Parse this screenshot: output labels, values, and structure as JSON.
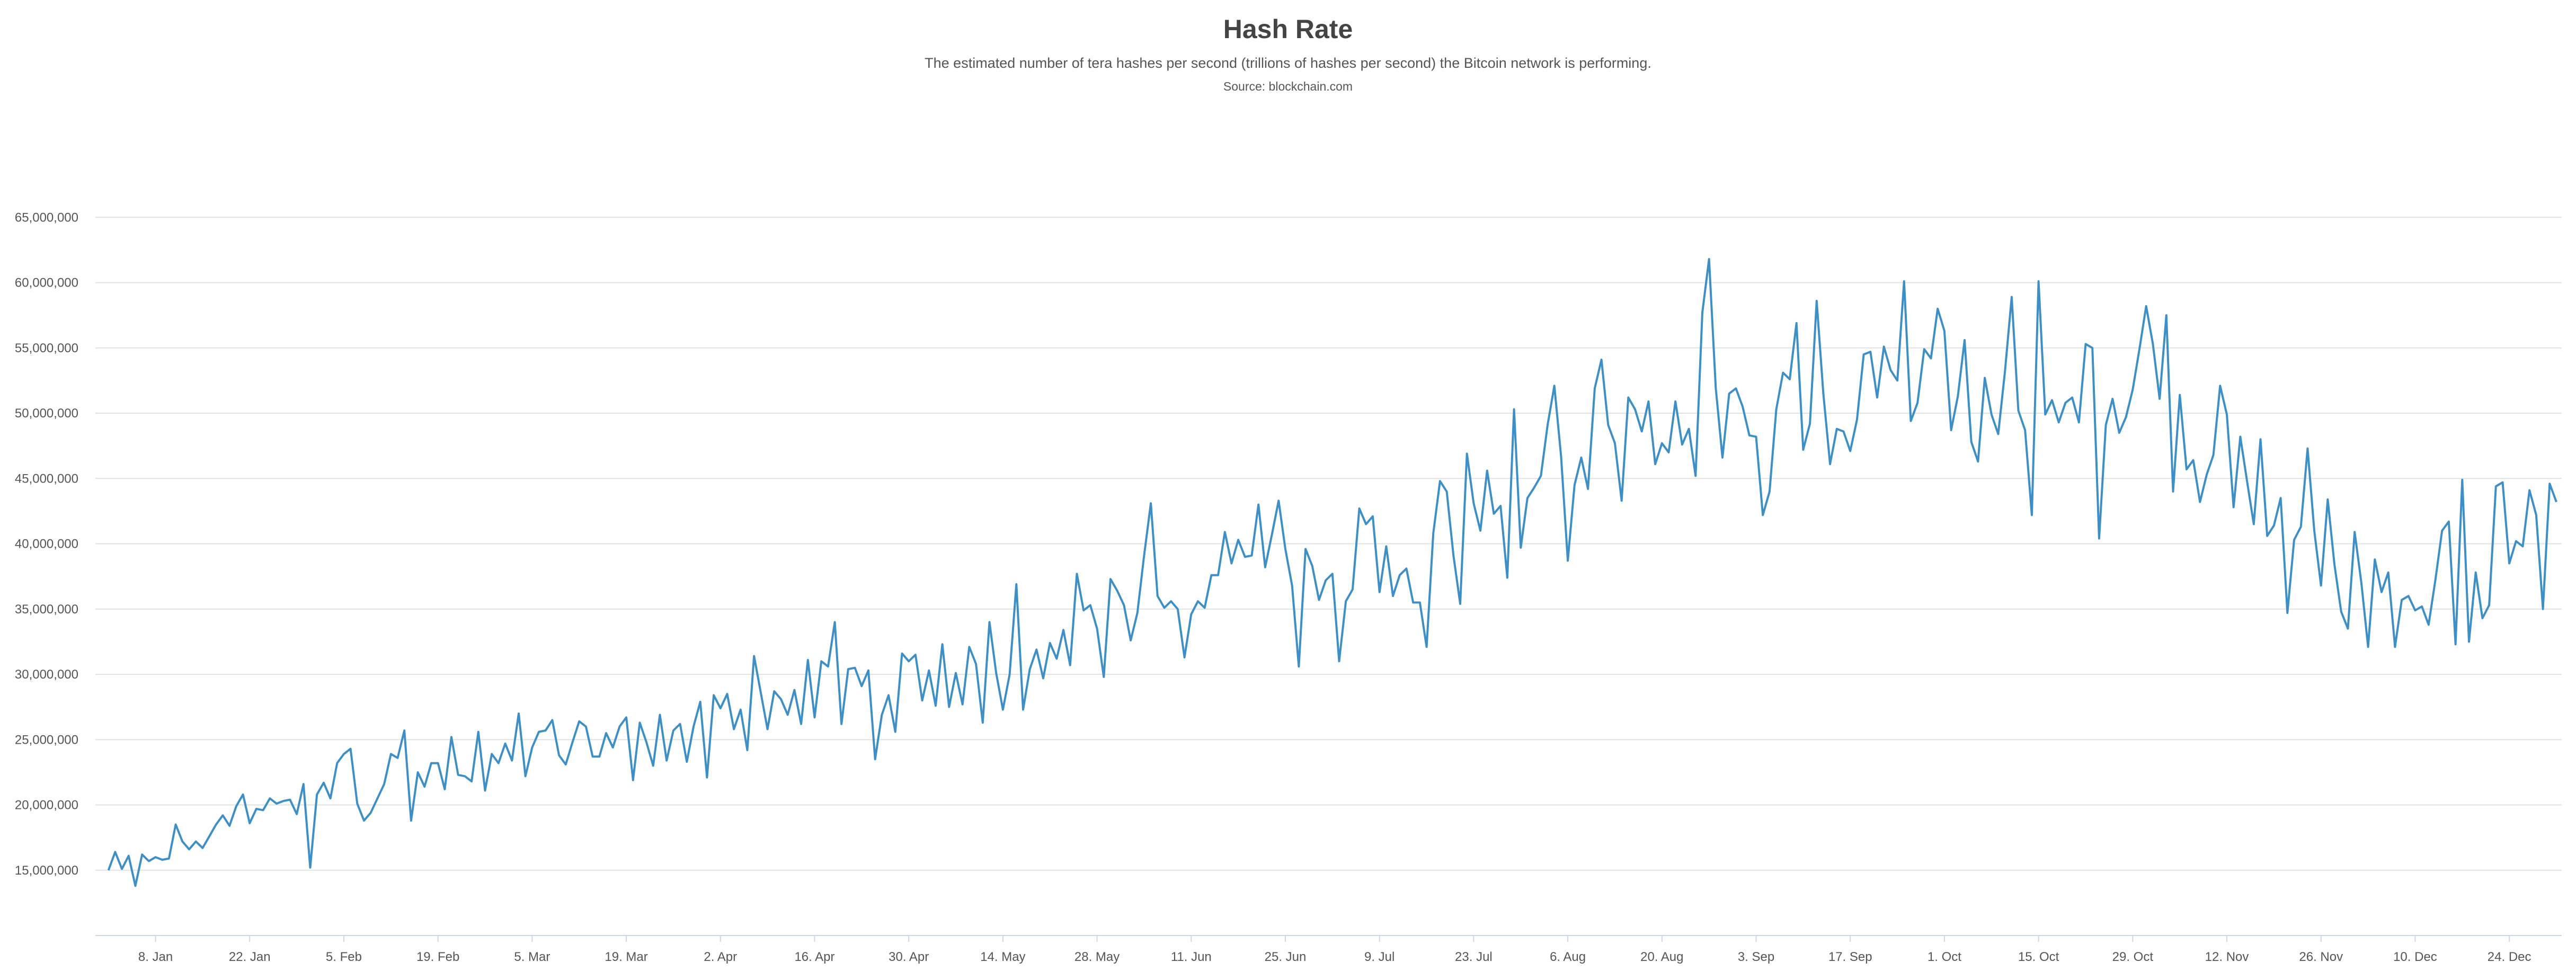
{
  "chart_data": {
    "type": "line",
    "title": "Hash Rate",
    "subtitle": "The estimated number of tera hashes per second (trillions of hashes per second) the Bitcoin network is performing.",
    "source": "Source: blockchain.com",
    "ylabel": "",
    "xlabel": "",
    "ylim": [
      10000000,
      70000000
    ],
    "yticks": [
      {
        "value": 15000000,
        "label": "15,000,000"
      },
      {
        "value": 20000000,
        "label": "20,000,000"
      },
      {
        "value": 25000000,
        "label": "25,000,000"
      },
      {
        "value": 30000000,
        "label": "30,000,000"
      },
      {
        "value": 35000000,
        "label": "35,000,000"
      },
      {
        "value": 40000000,
        "label": "40,000,000"
      },
      {
        "value": 45000000,
        "label": "45,000,000"
      },
      {
        "value": 50000000,
        "label": "50,000,000"
      },
      {
        "value": 55000000,
        "label": "55,000,000"
      },
      {
        "value": 60000000,
        "label": "60,000,000"
      },
      {
        "value": 65000000,
        "label": "65,000,000"
      }
    ],
    "xlim": [
      "2018-12-31",
      "2019-12-31"
    ],
    "xticks": [
      {
        "date": "2019-01-08",
        "label": "8. Jan"
      },
      {
        "date": "2019-01-22",
        "label": "22. Jan"
      },
      {
        "date": "2019-02-05",
        "label": "5. Feb"
      },
      {
        "date": "2019-02-19",
        "label": "19. Feb"
      },
      {
        "date": "2019-03-05",
        "label": "5. Mar"
      },
      {
        "date": "2019-03-19",
        "label": "19. Mar"
      },
      {
        "date": "2019-04-02",
        "label": "2. Apr"
      },
      {
        "date": "2019-04-16",
        "label": "16. Apr"
      },
      {
        "date": "2019-04-30",
        "label": "30. Apr"
      },
      {
        "date": "2019-05-14",
        "label": "14. May"
      },
      {
        "date": "2019-05-28",
        "label": "28. May"
      },
      {
        "date": "2019-06-11",
        "label": "11. Jun"
      },
      {
        "date": "2019-06-25",
        "label": "25. Jun"
      },
      {
        "date": "2019-07-09",
        "label": "9. Jul"
      },
      {
        "date": "2019-07-23",
        "label": "23. Jul"
      },
      {
        "date": "2019-08-06",
        "label": "6. Aug"
      },
      {
        "date": "2019-08-20",
        "label": "20. Aug"
      },
      {
        "date": "2019-09-03",
        "label": "3. Sep"
      },
      {
        "date": "2019-09-17",
        "label": "17. Sep"
      },
      {
        "date": "2019-10-01",
        "label": "1. Oct"
      },
      {
        "date": "2019-10-15",
        "label": "15. Oct"
      },
      {
        "date": "2019-10-29",
        "label": "29. Oct"
      },
      {
        "date": "2019-11-12",
        "label": "12. Nov"
      },
      {
        "date": "2019-11-26",
        "label": "26. Nov"
      },
      {
        "date": "2019-12-10",
        "label": "10. Dec"
      },
      {
        "date": "2019-12-24",
        "label": "24. Dec"
      }
    ],
    "grid": true,
    "line_color": "#3d8fc6",
    "series": [
      {
        "name": "",
        "x_start": "2019-01-01",
        "x_step_days": 1,
        "values": [
          15000000,
          16400000,
          15100000,
          16100000,
          13800000,
          16200000,
          15700000,
          16000000,
          15800000,
          15900000,
          18500000,
          17200000,
          16600000,
          17200000,
          16700000,
          17600000,
          18500000,
          19200000,
          18400000,
          19900000,
          20800000,
          18600000,
          19700000,
          19600000,
          20500000,
          20100000,
          20300000,
          20400000,
          19300000,
          21600000,
          15200000,
          20800000,
          21700000,
          20500000,
          23200000,
          23900000,
          24300000,
          20100000,
          18800000,
          19400000,
          20500000,
          21600000,
          23900000,
          23600000,
          25700000,
          18800000,
          22500000,
          21400000,
          23200000,
          23200000,
          21200000,
          25200000,
          22300000,
          22200000,
          21800000,
          25600000,
          21100000,
          23900000,
          23200000,
          24700000,
          23400000,
          27000000,
          22200000,
          24400000,
          25600000,
          25700000,
          26500000,
          23800000,
          23100000,
          24800000,
          26400000,
          26000000,
          23700000,
          23700000,
          25500000,
          24400000,
          26000000,
          26700000,
          21900000,
          26300000,
          24800000,
          23000000,
          26900000,
          23400000,
          25700000,
          26200000,
          23300000,
          26000000,
          27900000,
          22100000,
          28400000,
          27400000,
          28500000,
          25800000,
          27300000,
          24200000,
          31400000,
          28600000,
          25800000,
          28700000,
          28100000,
          26900000,
          28800000,
          26200000,
          31100000,
          26700000,
          31000000,
          30600000,
          34000000,
          26200000,
          30400000,
          30500000,
          29100000,
          30300000,
          23500000,
          26900000,
          28400000,
          25600000,
          31600000,
          31000000,
          31500000,
          28000000,
          30300000,
          27600000,
          32300000,
          27500000,
          30100000,
          27700000,
          32100000,
          30800000,
          26300000,
          34000000,
          30100000,
          27300000,
          30000000,
          36900000,
          27300000,
          30400000,
          31900000,
          29700000,
          32400000,
          31200000,
          33400000,
          30700000,
          37700000,
          34900000,
          35300000,
          33500000,
          29800000,
          37300000,
          36400000,
          35300000,
          32600000,
          34700000,
          39100000,
          43100000,
          36000000,
          35100000,
          35600000,
          35000000,
          31300000,
          34600000,
          35600000,
          35100000,
          37600000,
          37600000,
          40900000,
          38500000,
          40300000,
          39000000,
          39100000,
          43000000,
          38200000,
          40700000,
          43300000,
          39600000,
          36800000,
          30600000,
          39600000,
          38300000,
          35700000,
          37200000,
          37700000,
          31000000,
          35600000,
          36500000,
          42700000,
          41500000,
          42100000,
          36300000,
          39800000,
          36000000,
          37600000,
          38100000,
          35500000,
          35500000,
          32100000,
          40800000,
          44800000,
          44000000,
          39100000,
          35400000,
          46900000,
          43100000,
          41000000,
          45600000,
          42300000,
          42900000,
          37400000,
          50300000,
          39700000,
          43500000,
          44300000,
          45200000,
          49100000,
          52100000,
          46700000,
          38700000,
          44500000,
          46600000,
          44200000,
          51900000,
          54100000,
          49100000,
          47700000,
          43300000,
          51200000,
          50300000,
          48600000,
          50900000,
          46100000,
          47700000,
          47000000,
          50900000,
          47600000,
          48800000,
          45200000,
          57700000,
          61800000,
          51900000,
          46600000,
          51500000,
          51900000,
          50500000,
          48300000,
          48200000,
          42200000,
          44000000,
          50300000,
          53100000,
          52600000,
          56900000,
          47200000,
          49200000,
          58600000,
          51500000,
          46100000,
          48800000,
          48600000,
          47100000,
          49500000,
          54500000,
          54700000,
          51200000,
          55100000,
          53300000,
          52500000,
          60100000,
          49400000,
          50800000,
          54900000,
          54200000,
          58000000,
          56300000,
          48700000,
          51300000,
          55600000,
          47800000,
          46300000,
          52700000,
          49900000,
          48400000,
          53200000,
          58900000,
          50200000,
          48700000,
          42200000,
          60100000,
          49900000,
          51000000,
          49300000,
          50800000,
          51200000,
          49300000,
          55300000,
          55000000,
          40400000,
          49100000,
          51100000,
          48500000,
          49700000,
          51800000,
          54900000,
          58200000,
          55300000,
          51100000,
          57500000,
          44000000,
          51400000,
          45700000,
          46400000,
          43200000,
          45300000,
          46800000,
          52100000,
          49900000,
          42800000,
          48200000,
          44800000,
          41500000,
          48000000,
          40600000,
          41400000,
          43500000,
          34700000,
          40300000,
          41300000,
          47300000,
          41000000,
          36800000,
          43400000,
          38400000,
          34800000,
          33500000,
          40900000,
          37000000,
          32100000,
          38800000,
          36300000,
          37800000,
          32100000,
          35700000,
          36000000,
          34900000,
          35200000,
          33800000,
          37200000,
          41000000,
          41700000,
          32300000,
          44900000,
          32500000,
          37800000,
          34300000,
          35300000,
          44400000,
          44700000,
          38500000,
          40200000,
          39800000,
          44100000,
          42200000,
          35000000,
          44600000,
          43200000
        ]
      }
    ]
  }
}
